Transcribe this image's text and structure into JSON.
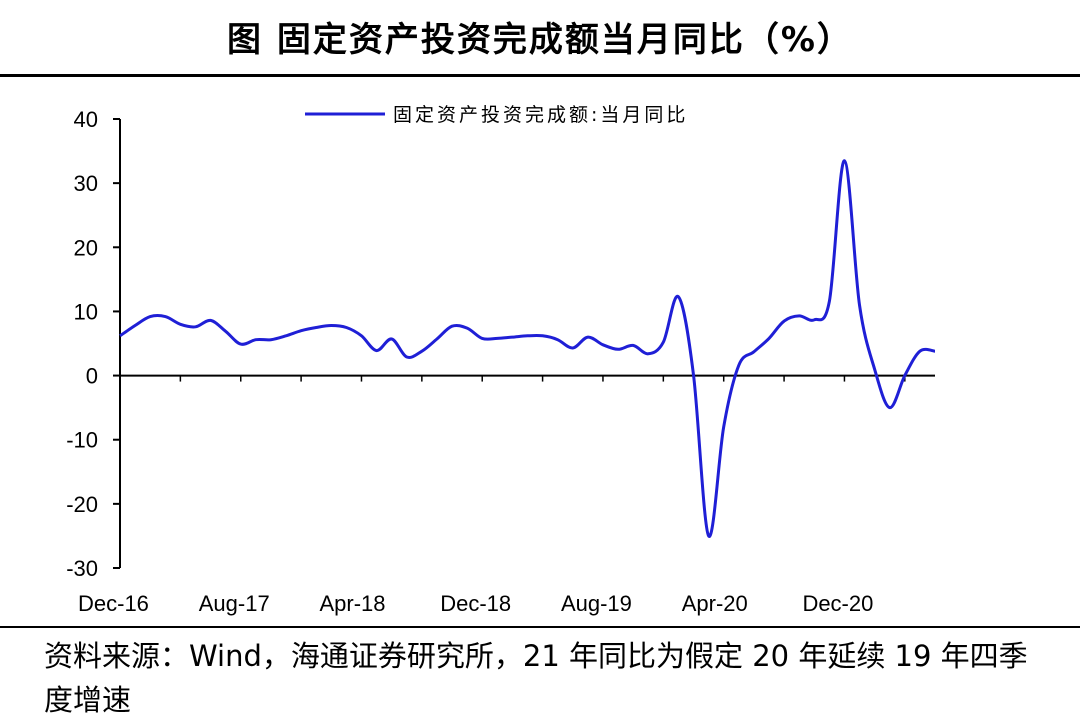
{
  "title": "图  固定资产投资完成额当月同比（%）",
  "source_note": "资料来源：Wind，海通证券研究所，21 年同比为假定 20 年延续 19 年四季度增速",
  "chart_data": {
    "type": "line",
    "title": "图  固定资产投资完成额当月同比（%）",
    "xlabel": "",
    "ylabel": "",
    "ylim": [
      -30,
      40
    ],
    "yticks": [
      40,
      30,
      20,
      10,
      0,
      -10,
      -20,
      -30
    ],
    "ytick_labels": [
      "40",
      "30",
      "20",
      "10",
      "0",
      "-10",
      "-20",
      "-30"
    ],
    "xtick_labels": [
      "Dec-16",
      "Aug-17",
      "Apr-18",
      "Dec-18",
      "Aug-19",
      "Apr-20",
      "Dec-20"
    ],
    "grid": false,
    "legend": "top-center",
    "color": "#1f1fd6",
    "series": [
      {
        "name": "固定资产投资完成额:当月同比",
        "x": [
          "Dec-16",
          "Jan-17",
          "Feb-17",
          "Mar-17",
          "Apr-17",
          "May-17",
          "Jun-17",
          "Jul-17",
          "Aug-17",
          "Sep-17",
          "Oct-17",
          "Nov-17",
          "Dec-17",
          "Jan-18",
          "Feb-18",
          "Mar-18",
          "Apr-18",
          "May-18",
          "Jun-18",
          "Jul-18",
          "Aug-18",
          "Sep-18",
          "Oct-18",
          "Nov-18",
          "Dec-18",
          "Jan-19",
          "Feb-19",
          "Mar-19",
          "Apr-19",
          "May-19",
          "Jun-19",
          "Jul-19",
          "Aug-19",
          "Sep-19",
          "Oct-19",
          "Nov-19",
          "Dec-19",
          "Jan-20",
          "Feb-20",
          "Mar-20",
          "Apr-20",
          "May-20",
          "Jun-20",
          "Jul-20",
          "Aug-20",
          "Sep-20",
          "Oct-20",
          "Nov-20",
          "Dec-20",
          "Jan-21",
          "Feb-21",
          "Mar-21",
          "Apr-21",
          "May-21",
          "Jun-21"
        ],
        "values": [
          6.2,
          7.8,
          9.2,
          9.2,
          8.0,
          7.6,
          8.6,
          6.9,
          4.9,
          5.6,
          5.6,
          6.2,
          7.0,
          7.5,
          7.8,
          7.5,
          6.2,
          3.9,
          5.7,
          2.9,
          3.8,
          5.7,
          7.7,
          7.4,
          5.8,
          5.8,
          6.0,
          6.2,
          6.2,
          5.6,
          4.3,
          6.0,
          4.8,
          4.1,
          4.7,
          3.4,
          5.2,
          12.3,
          0.1,
          -25.0,
          -8.0,
          1.6,
          3.7,
          5.8,
          8.5,
          9.3,
          8.7,
          11.6,
          33.5,
          11.0,
          1.0,
          -5.0,
          0.0,
          3.8,
          3.8
        ]
      }
    ]
  }
}
